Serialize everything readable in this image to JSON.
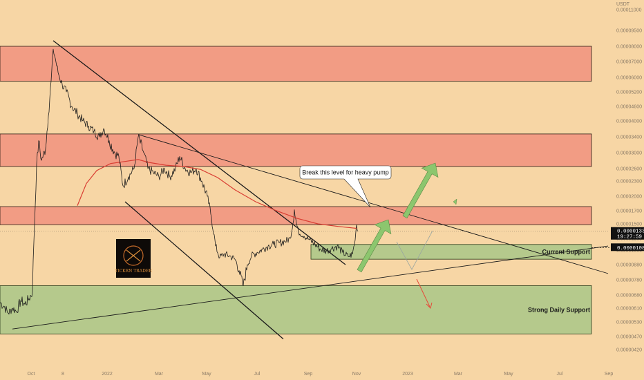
{
  "chart_data": {
    "type": "candlestick",
    "axis_currency": "USDT",
    "y_ticks": [
      "0.00011000",
      "0.00009500",
      "0.00008000",
      "0.00007000",
      "0.00006000",
      "0.00005200",
      "0.00004600",
      "0.00004000",
      "0.00003400",
      "0.00003000",
      "0.00002600",
      "0.00002300",
      "0.00002000",
      "0.00001700",
      "0.00001500",
      "0.00001200",
      "0.00001050",
      "0.00000880",
      "0.00000780",
      "0.00000680",
      "0.00000610",
      "0.00000530",
      "0.00000470",
      "0.00000420"
    ],
    "x_ticks": [
      "Oct",
      "8",
      "2022",
      "Mar",
      "May",
      "Jul",
      "Sep",
      "Nov",
      "2023",
      "Mar",
      "May",
      "Jul",
      "Sep"
    ],
    "price_pivots": [
      [
        0,
        6.4e-06
      ],
      [
        6,
        6.2e-06
      ],
      [
        12,
        5.8e-06
      ],
      [
        18,
        6.1e-06
      ],
      [
        24,
        5.9e-06
      ],
      [
        30,
        6.5e-06
      ],
      [
        36,
        6.3e-06
      ],
      [
        42,
        6.6e-06
      ],
      [
        47,
        7e-06
      ],
      [
        50,
        1.5e-05
      ],
      [
        53,
        2.7e-05
      ],
      [
        56,
        3.3e-05
      ],
      [
        60,
        2.8e-05
      ],
      [
        66,
        3.1e-05
      ],
      [
        70,
        4.2e-05
      ],
      [
        74,
        5.8e-05
      ],
      [
        77,
        7.8e-05
      ],
      [
        80,
        7.2e-05
      ],
      [
        84,
        6.3e-05
      ],
      [
        90,
        5.6e-05
      ],
      [
        96,
        5.2e-05
      ],
      [
        104,
        4.6e-05
      ],
      [
        112,
        4.3e-05
      ],
      [
        120,
        4e-05
      ],
      [
        128,
        3.8e-05
      ],
      [
        136,
        3.6e-05
      ],
      [
        144,
        3.4e-05
      ],
      [
        150,
        3.7e-05
      ],
      [
        158,
        3.3e-05
      ],
      [
        166,
        3e-05
      ],
      [
        172,
        2.9e-05
      ],
      [
        178,
        2.2e-05
      ],
      [
        186,
        2.4e-05
      ],
      [
        194,
        2.6e-05
      ],
      [
        200,
        3.4e-05
      ],
      [
        208,
        3e-05
      ],
      [
        214,
        2.6e-05
      ],
      [
        222,
        2.5e-05
      ],
      [
        230,
        2.4e-05
      ],
      [
        238,
        2.6e-05
      ],
      [
        246,
        2.4e-05
      ],
      [
        254,
        2.6e-05
      ],
      [
        260,
        2.9e-05
      ],
      [
        268,
        2.6e-05
      ],
      [
        276,
        2.5e-05
      ],
      [
        284,
        2.6e-05
      ],
      [
        292,
        2.3e-05
      ],
      [
        300,
        2e-05
      ],
      [
        306,
        1.6e-05
      ],
      [
        312,
        1.1e-05
      ],
      [
        318,
        9.6e-06
      ],
      [
        324,
        1e-05
      ],
      [
        332,
        9.8e-06
      ],
      [
        340,
        9.4e-06
      ],
      [
        346,
        8.4e-06
      ],
      [
        352,
        7.4e-06
      ],
      [
        358,
        8.8e-06
      ],
      [
        364,
        9.8e-06
      ],
      [
        372,
        1.02e-05
      ],
      [
        380,
        1.06e-05
      ],
      [
        388,
        1.1e-05
      ],
      [
        396,
        1.12e-05
      ],
      [
        404,
        1.14e-05
      ],
      [
        412,
        1.16e-05
      ],
      [
        420,
        1.2e-05
      ],
      [
        426,
        1.72e-05
      ],
      [
        432,
        1.32e-05
      ],
      [
        440,
        1.24e-05
      ],
      [
        448,
        1.18e-05
      ],
      [
        456,
        1.12e-05
      ],
      [
        464,
        1.06e-05
      ],
      [
        472,
        1.04e-05
      ],
      [
        480,
        1.07e-05
      ],
      [
        488,
        1.1e-05
      ],
      [
        496,
        1.02e-05
      ],
      [
        504,
        9.7e-06
      ],
      [
        510,
        1e-05
      ],
      [
        514,
        1.18e-05
      ],
      [
        516,
        1.48e-05
      ],
      [
        518,
        1.34e-05
      ]
    ],
    "ma_curve": [
      [
        112,
        1.8e-05
      ],
      [
        125,
        2.25e-05
      ],
      [
        140,
        2.55e-05
      ],
      [
        160,
        2.72e-05
      ],
      [
        180,
        2.77e-05
      ],
      [
        200,
        2.82e-05
      ],
      [
        215,
        2.75e-05
      ],
      [
        240,
        2.68e-05
      ],
      [
        265,
        2.65e-05
      ],
      [
        290,
        2.58e-05
      ],
      [
        315,
        2.38e-05
      ],
      [
        340,
        2.12e-05
      ],
      [
        370,
        1.88e-05
      ],
      [
        400,
        1.7e-05
      ],
      [
        430,
        1.58e-05
      ],
      [
        460,
        1.5e-05
      ],
      [
        490,
        1.44e-05
      ],
      [
        516,
        1.4e-05
      ]
    ],
    "resistance_zones": [
      {
        "name": "upper",
        "top": 8e-05,
        "bottom": 5.78e-05
      },
      {
        "name": "middle",
        "top": 3.5e-05,
        "bottom": 2.65e-05
      },
      {
        "name": "lower",
        "top": 1.78e-05,
        "bottom": 1.48e-05
      }
    ],
    "support_zones": [
      {
        "name": "current",
        "label": "Current Support",
        "top": 1.12e-05,
        "bottom": 9.4e-06
      },
      {
        "name": "strong",
        "label": "Strong Daily Support",
        "top": 7.4e-06,
        "bottom": 4.8e-06
      }
    ],
    "trendlines": [
      {
        "name": "big-down-channel-top",
        "from": [
          77,
          8.5e-05
        ],
        "to": [
          500,
          8.8e-06
        ]
      },
      {
        "name": "big-down-channel-bottom",
        "from": [
          181,
          1.88e-05
        ],
        "to": [
          410,
          4.6e-06
        ]
      },
      {
        "name": "descending-resistance",
        "from": [
          200,
          3.48e-05
        ],
        "to": [
          880,
          8.2e-06
        ]
      },
      {
        "name": "rising-support",
        "from": [
          18,
          5e-06
        ],
        "to": [
          880,
          1.1e-05
        ]
      }
    ],
    "current_price": {
      "value": "0.00001338",
      "countdown": "19:27:59"
    },
    "marker_price": {
      "value": "0.00001081"
    },
    "callout": "Break this level for heavy pump",
    "colors": {
      "background": "#f7d6a5",
      "resistance": "#f29c84",
      "support": "#b5c98c",
      "ma": "#d93d33",
      "arrow_up": "#8cc66e",
      "arrow_down": "#e64a3a",
      "price_tag": "#121212"
    },
    "logo_text": "TICKRN TRADER"
  }
}
